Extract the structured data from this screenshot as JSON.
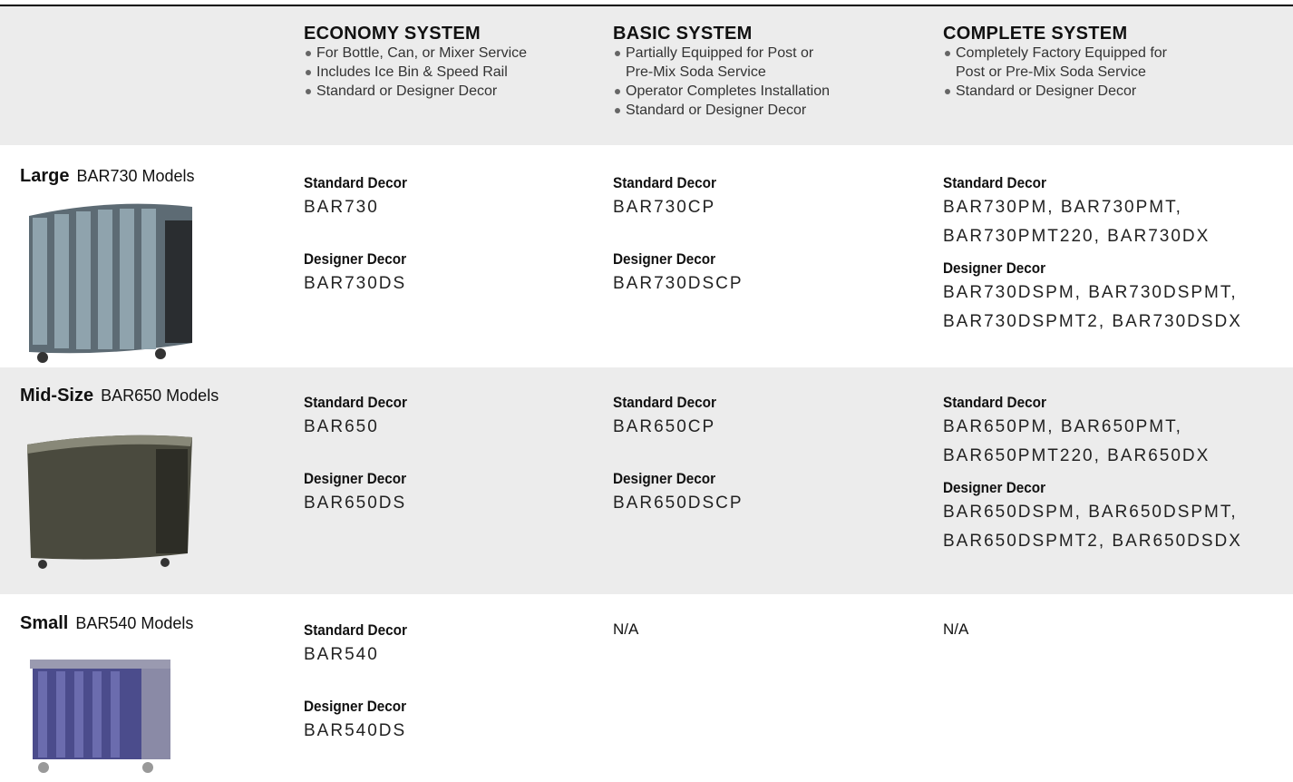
{
  "header": {
    "columns": [
      {
        "title": "ECONOMY SYSTEM",
        "bullets": [
          [
            "For Bottle, Can, or Mixer Service"
          ],
          [
            "Includes Ice Bin & Speed Rail"
          ],
          [
            "Standard or Designer Decor"
          ]
        ]
      },
      {
        "title": "BASIC SYSTEM",
        "bullets": [
          [
            "Partially Equipped for Post or",
            "Pre-Mix Soda Service"
          ],
          [
            "Operator Completes Installation"
          ],
          [
            "Standard or Designer Decor"
          ]
        ]
      },
      {
        "title": "COMPLETE SYSTEM",
        "bullets": [
          [
            "Completely Factory Equipped for",
            "Post or Pre-Mix Soda Service"
          ],
          [
            "Standard or Designer Decor"
          ]
        ]
      }
    ]
  },
  "rows": [
    {
      "size": "Large",
      "models": "BAR730 Models",
      "cells": [
        {
          "standard_label": "Standard Decor",
          "standard": [
            "BAR730"
          ],
          "designer_label": "Designer Decor",
          "designer": [
            "BAR730DS"
          ]
        },
        {
          "standard_label": "Standard Decor",
          "standard": [
            "BAR730CP"
          ],
          "designer_label": "Designer Decor",
          "designer": [
            "BAR730DSCP"
          ]
        },
        {
          "standard_label": "Standard Decor",
          "standard": [
            "BAR730PM, BAR730PMT,",
            "BAR730PMT220, BAR730DX"
          ],
          "designer_label": "Designer Decor",
          "designer": [
            "BAR730DSPM, BAR730DSPMT,",
            "BAR730DSPMT2, BAR730DSDX"
          ]
        }
      ]
    },
    {
      "size": "Mid-Size",
      "models": "BAR650 Models",
      "cells": [
        {
          "standard_label": "Standard Decor",
          "standard": [
            "BAR650"
          ],
          "designer_label": "Designer Decor",
          "designer": [
            "BAR650DS"
          ]
        },
        {
          "standard_label": "Standard Decor",
          "standard": [
            "BAR650CP"
          ],
          "designer_label": "Designer Decor",
          "designer": [
            "BAR650DSCP"
          ]
        },
        {
          "standard_label": "Standard Decor",
          "standard": [
            "BAR650PM, BAR650PMT,",
            "BAR650PMT220, BAR650DX"
          ],
          "designer_label": "Designer Decor",
          "designer": [
            "BAR650DSPM, BAR650DSPMT,",
            "BAR650DSPMT2, BAR650DSDX"
          ]
        }
      ]
    },
    {
      "size": "Small",
      "models": "BAR540 Models",
      "cells": [
        {
          "standard_label": "Standard Decor",
          "standard": [
            "BAR540"
          ],
          "designer_label": "Designer Decor",
          "designer": [
            "BAR540DS"
          ]
        },
        {
          "text": "N/A"
        },
        {
          "text": "N/A"
        }
      ]
    }
  ]
}
